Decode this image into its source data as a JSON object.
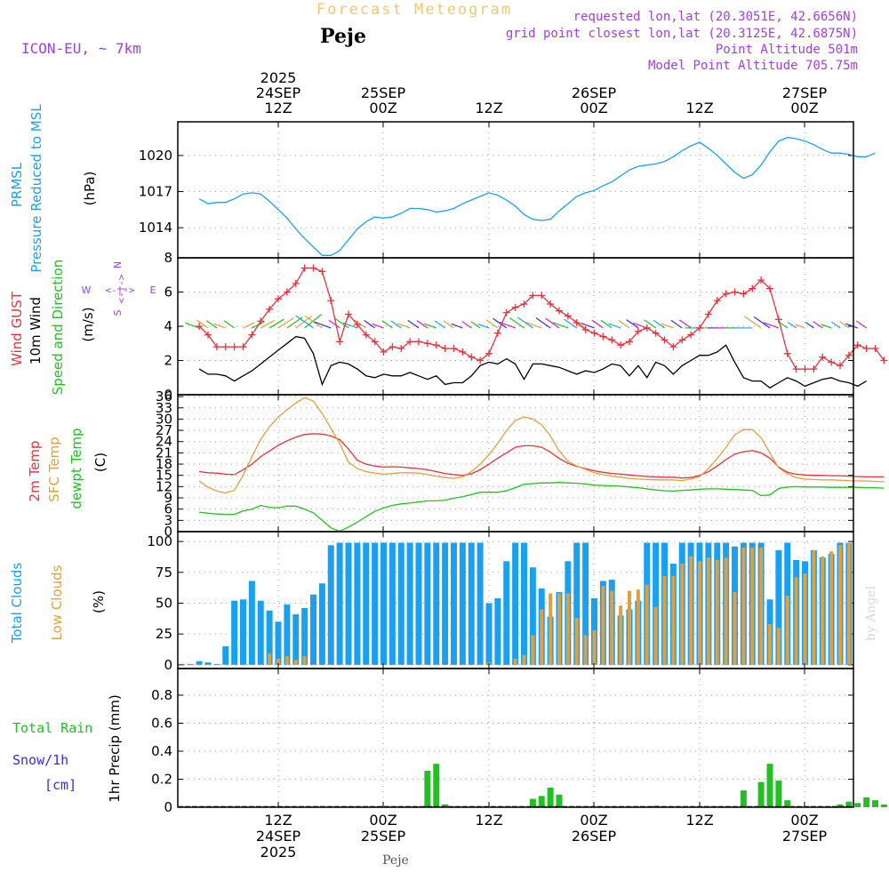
{
  "colors": {
    "purple": "#a040e0",
    "cyan": "#1aa0f0",
    "orange": "#e0a040",
    "red": "#e8323c",
    "green": "#22c022",
    "blue": "#3030e0",
    "black": "#000000",
    "grid": "#a0a0a0",
    "title": "#f0c870",
    "watermark": "#d8d8d8"
  },
  "header": {
    "title": "Forecast Meteogram",
    "location": "Peje",
    "model": "ICON-EU,  ~ 7km",
    "requested": "requested lon,lat (20.3051E, 42.6656N)",
    "gridpoint": "grid point closest lon,lat (20.3125E, 42.6875N)",
    "point_alt": "Point Altitude 501m",
    "model_alt": "Model Point Altitude 705.75m"
  },
  "footer": {
    "location": "Peje",
    "watermark": "by Angel"
  },
  "time_axis": {
    "top_year": "2025",
    "hours": [
      "12Z",
      "00Z",
      "12Z",
      "00Z",
      "12Z",
      "00Z"
    ],
    "dates": [
      "24SEP",
      "25SEP",
      "26SEP",
      "27SEP"
    ],
    "bottom_year": "2025"
  },
  "panel_labels": {
    "pressure": [
      "PRMSL",
      "Pressure Reduced to MSL",
      "(hPa)"
    ],
    "wind": [
      "Wind GUST",
      "10m Wind",
      "Speed and Direction",
      "(m/s)"
    ],
    "compass": [
      "N",
      "S",
      "W",
      "E",
      "<-|->"
    ],
    "temp": [
      "2m Temp",
      "SFC Temp",
      "dewpt Temp",
      "(C)"
    ],
    "clouds": [
      "Total Clouds",
      "Low Clouds",
      "(%)"
    ],
    "precip": [
      "Total  Rain",
      "Snow/1h",
      "[cm]",
      "1hr Precip (mm)"
    ]
  },
  "chart_data": [
    {
      "type": "line",
      "title": "PRMSL Pressure Reduced to MSL",
      "ylabel": "(hPa)",
      "ylim": [
        1011.5,
        1022.8
      ],
      "yticks": [
        1014,
        1017,
        1020
      ],
      "x_hours": "hours from 24SEP 00Z, hourly from 3 to 75",
      "series": [
        {
          "name": "PRMSL",
          "color": "#1aa0f0",
          "values": [
            1016.4,
            1016,
            1016.1,
            1016.1,
            1016.4,
            1016.8,
            1016.9,
            1016.8,
            1016.2,
            1015.5,
            1014.8,
            1013.9,
            1013.1,
            1012.4,
            1011.7,
            1011.7,
            1012.1,
            1013,
            1013.9,
            1014.5,
            1014.9,
            1014.8,
            1014.9,
            1015.2,
            1015.6,
            1015.6,
            1015.5,
            1015.3,
            1015.4,
            1015.6,
            1016,
            1016.3,
            1016.6,
            1016.9,
            1016.7,
            1016.3,
            1015.8,
            1015.1,
            1014.7,
            1014.6,
            1014.7,
            1015.4,
            1016,
            1016.6,
            1016.9,
            1017.1,
            1017.5,
            1017.8,
            1018.3,
            1018.8,
            1019.1,
            1019.2,
            1019.3,
            1019.5,
            1019.9,
            1020.4,
            1020.8,
            1021.1,
            1020.6,
            1020,
            1019.3,
            1018.6,
            1018.1,
            1018.4,
            1019.2,
            1020.3,
            1021.2,
            1021.5,
            1021.4,
            1021.2,
            1020.9,
            1020.5,
            1020.2,
            1020.2,
            1020.1,
            1019.9,
            1019.9,
            1020.2
          ]
        }
      ]
    },
    {
      "type": "line",
      "title": "Wind GUST / 10m Wind Speed and Direction",
      "ylabel": "(m/s)",
      "ylim": [
        0,
        8
      ],
      "yticks": [
        0,
        2,
        4,
        6,
        8
      ],
      "series": [
        {
          "name": "Wind GUST",
          "color": "#e8323c",
          "markers": "+",
          "values": [
            4,
            3.5,
            2.8,
            2.8,
            2.8,
            2.8,
            3.5,
            4.3,
            5,
            5.6,
            6,
            6.5,
            7.4,
            7.4,
            7.2,
            5.5,
            3.1,
            4.7,
            4.1,
            3.5,
            3.1,
            2.5,
            2.8,
            2.7,
            3.1,
            3.1,
            3,
            2.9,
            2.7,
            2.7,
            2.5,
            2.2,
            2,
            2.4,
            3.6,
            4.8,
            5.1,
            5.3,
            5.8,
            5.8,
            5.3,
            4.9,
            4.6,
            4.2,
            3.8,
            3.6,
            3.4,
            3.2,
            2.9,
            3.1,
            3.7,
            3.9,
            3.6,
            3.2,
            2.8,
            3.2,
            3.5,
            3.9,
            4.7,
            5.5,
            5.9,
            6,
            5.9,
            6.2,
            6.7,
            6.2,
            4.4,
            2.4,
            1.5,
            1.5,
            1.5,
            2.2,
            1.9,
            1.7,
            2.3,
            2.9,
            2.7,
            2.7,
            2
          ]
        },
        {
          "name": "10m Wind",
          "color": "#000000",
          "values": [
            1.5,
            1.2,
            1.2,
            1.1,
            0.8,
            1.1,
            1.4,
            1.8,
            2.2,
            2.6,
            3,
            3.4,
            3.3,
            2.4,
            0.6,
            1.7,
            1.9,
            1.8,
            1.5,
            1.1,
            1,
            1.2,
            1.1,
            1.1,
            1.3,
            1.1,
            0.9,
            1.1,
            0.6,
            0.7,
            0.7,
            1.1,
            1.7,
            1.9,
            1.8,
            2.1,
            1.8,
            0.9,
            1.8,
            1.8,
            1.7,
            1.6,
            1.4,
            1.2,
            1.4,
            1.3,
            1.5,
            1.8,
            1.7,
            1.1,
            1.7,
            1,
            1.9,
            1.7,
            1.2,
            1.7,
            2,
            2.3,
            2.3,
            2.5,
            2.9,
            1.9,
            1,
            0.8,
            0.8,
            0.4,
            0.7,
            1,
            0.8,
            0.5,
            0.7,
            0.9,
            1,
            0.8,
            0.7,
            0.5,
            0.8
          ]
        }
      ]
    },
    {
      "type": "line",
      "title": "2m Temp / SFC Temp / dewpt Temp",
      "ylabel": "(C)",
      "ylim": [
        0,
        36.5
      ],
      "yticks": [
        0,
        3,
        6,
        9,
        12,
        15,
        18,
        21,
        24,
        27,
        30,
        33,
        36
      ],
      "series": [
        {
          "name": "2m Temp",
          "color": "#e8323c",
          "values": [
            16,
            15.7,
            15.6,
            15.3,
            15.2,
            16.5,
            18,
            20,
            21.5,
            23,
            24.2,
            25.2,
            25.9,
            26.1,
            26,
            25.5,
            24.5,
            22,
            19,
            18,
            17.5,
            17.2,
            17.3,
            17.2,
            17,
            16.8,
            16.5,
            16,
            15.5,
            15.2,
            15,
            15.4,
            16.5,
            18,
            19.6,
            21,
            22.5,
            22.9,
            22.9,
            22.5,
            21.2,
            19.5,
            18.2,
            17.4,
            16.8,
            16.2,
            15.8,
            15.5,
            15.3,
            15.1,
            14.9,
            14.7,
            14.6,
            14.5,
            14.5,
            14.3,
            14.4,
            15,
            16,
            17.5,
            19.2,
            20.7,
            21.3,
            21.6,
            21,
            19.6,
            17.2,
            15.8,
            15.3,
            15.1,
            15,
            15,
            14.9,
            14.9,
            14.8,
            14.7,
            14.6,
            14.6,
            14.6
          ]
        },
        {
          "name": "SFC Temp",
          "color": "#e0a040",
          "values": [
            13.5,
            11.8,
            10.8,
            10.3,
            11,
            15,
            20,
            24.6,
            28,
            30.5,
            32.5,
            34.3,
            35.7,
            34.8,
            31.5,
            27.5,
            23.5,
            18.5,
            16.8,
            16,
            15.6,
            15.3,
            15.5,
            15.7,
            15.7,
            15.6,
            15.2,
            14.8,
            14.4,
            14.2,
            14.6,
            16,
            18,
            20.5,
            23.5,
            27,
            29.6,
            30.6,
            30,
            28.5,
            25.5,
            21.5,
            18.8,
            17.5,
            16.6,
            15.7,
            15.2,
            14.8,
            14.5,
            14.2,
            14,
            13.9,
            13.8,
            13.8,
            13.8,
            13.6,
            14,
            14.7,
            16.8,
            19.5,
            22.5,
            25.8,
            27.2,
            27.2,
            25,
            21,
            17,
            15.4,
            14.4,
            14,
            13.9,
            13.8,
            13.8,
            13.7,
            13.6,
            13.5,
            13.5,
            13.4,
            13.3
          ]
        },
        {
          "name": "dewpt Temp",
          "color": "#22c022",
          "values": [
            5.2,
            4.9,
            4.7,
            4.6,
            4.6,
            5.5,
            6,
            7,
            6.5,
            6.3,
            6.8,
            6.8,
            6,
            5,
            3,
            1,
            0.1,
            1.2,
            2.5,
            4,
            5.4,
            6.3,
            7,
            7.4,
            7.6,
            7.9,
            8.2,
            8.2,
            8.4,
            8.9,
            9.3,
            9.9,
            10.5,
            10.5,
            10.5,
            10.9,
            11.7,
            12.6,
            12.8,
            13,
            13,
            13.1,
            13,
            12.9,
            12.7,
            12.4,
            12.3,
            12.2,
            12.1,
            11.9,
            11.7,
            11.4,
            11.1,
            10.9,
            10.8,
            11,
            11.1,
            11.3,
            11.4,
            11.4,
            11.3,
            11.2,
            11.1,
            11,
            9.6,
            9.8,
            11.5,
            11.9,
            12,
            11.9,
            11.9,
            11.9,
            11.8,
            11.8,
            11.8,
            11.8,
            11.7,
            11.7,
            11.6
          ]
        }
      ]
    },
    {
      "type": "bar",
      "title": "Total Clouds / Low Clouds",
      "ylabel": "(%)",
      "ylim": [
        -3,
        108
      ],
      "yticks": [
        0,
        25,
        50,
        75,
        100
      ],
      "series": [
        {
          "name": "Total Clouds",
          "color": "#1aa0f0",
          "values": [
            0,
            0,
            3,
            2,
            0,
            15,
            52,
            53,
            68,
            52,
            44,
            35,
            49,
            41,
            46,
            57,
            66,
            97,
            99,
            99,
            99,
            99,
            99,
            99,
            99,
            99,
            99,
            99,
            99,
            99,
            99,
            99,
            99,
            99,
            99,
            50,
            54,
            84,
            99,
            99,
            79,
            62,
            39,
            59,
            84,
            99,
            99,
            54,
            68,
            69,
            40,
            45,
            52,
            99,
            99,
            99,
            82,
            99,
            99,
            99,
            99,
            99,
            99,
            96,
            99,
            99,
            99,
            53,
            93,
            99,
            85,
            84,
            93,
            87,
            90,
            99,
            99,
            99,
            99,
            99,
            99,
            99,
            99,
            99,
            99,
            99,
            99,
            99
          ]
        },
        {
          "name": "Low Clouds",
          "color": "#e0a040",
          "values": [
            0,
            0,
            0,
            0,
            0,
            0,
            0,
            0,
            0,
            0,
            9,
            5,
            7,
            4,
            7,
            0,
            0,
            0,
            0,
            0,
            0,
            0,
            0,
            0,
            0,
            0,
            0,
            0,
            0,
            0,
            0,
            0,
            0,
            0,
            0,
            2,
            0,
            0,
            5,
            8,
            24,
            45,
            58,
            58,
            58,
            38,
            24,
            28,
            64,
            60,
            48,
            60,
            61,
            65,
            47,
            72,
            72,
            82,
            88,
            84,
            87,
            85,
            87,
            59,
            95,
            95,
            95,
            33,
            30,
            56,
            71,
            74,
            93,
            88,
            92,
            97,
            99,
            99,
            99,
            99,
            99,
            99,
            99,
            99,
            99,
            99,
            99,
            99
          ]
        }
      ]
    },
    {
      "type": "bar",
      "title": "Total Rain / Snow 1h",
      "ylabel": "1hr Precip (mm)",
      "ylim": [
        0,
        0.99
      ],
      "yticks": [
        0,
        0.2,
        0.4,
        0.6,
        0.8
      ],
      "series": [
        {
          "name": "Total Rain",
          "color": "#22c022",
          "hours": [
            29,
            30,
            31,
            41,
            42,
            43,
            44,
            55,
            65,
            67,
            68,
            69,
            70,
            76,
            77,
            78,
            79,
            80,
            81
          ],
          "values": [
            0.26,
            0.31,
            0.02,
            0.06,
            0.08,
            0.14,
            0.09,
            0.01,
            0.12,
            0.18,
            0.31,
            0.19,
            0.05,
            0.02,
            0.04,
            0.03,
            0.07,
            0.05,
            0.02
          ]
        },
        {
          "name": "Snow/1h",
          "color": "#3030e0",
          "hours": [],
          "values": []
        }
      ]
    }
  ]
}
